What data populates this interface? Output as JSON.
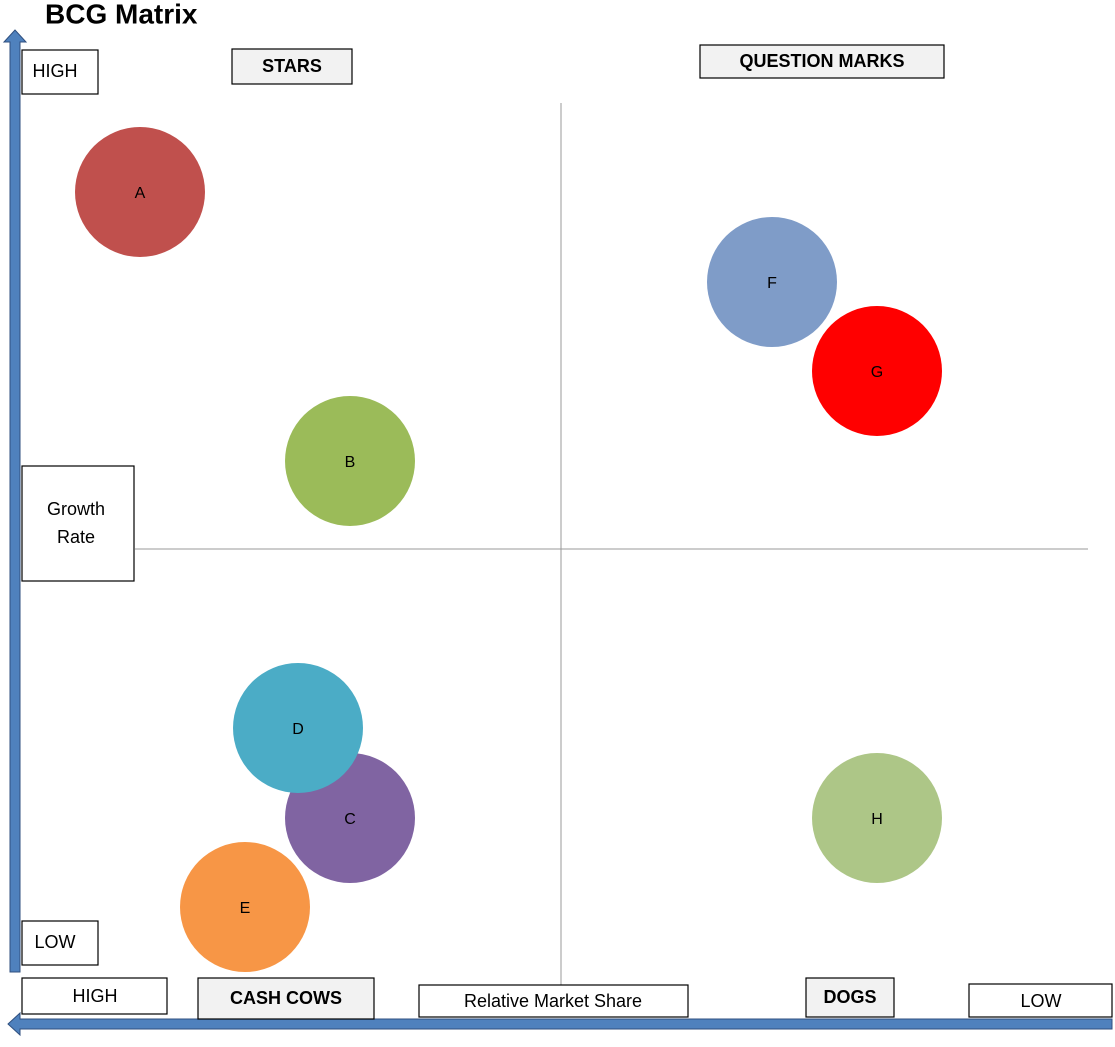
{
  "title": "BCG Matrix",
  "y_axis": {
    "title": "Growth Rate",
    "high": "HIGH",
    "low": "LOW"
  },
  "x_axis": {
    "title": "Relative Market Share",
    "high": "HIGH",
    "low": "LOW"
  },
  "quadrants": {
    "top_left": "STARS",
    "top_right": "QUESTION MARKS",
    "bottom_left": "CASH COWS",
    "bottom_right": "DOGS"
  },
  "nodes": [
    {
      "label": "A",
      "color": "#c0504d"
    },
    {
      "label": "B",
      "color": "#9bbb59"
    },
    {
      "label": "C",
      "color": "#8064a2"
    },
    {
      "label": "D",
      "color": "#4bacc6"
    },
    {
      "label": "E",
      "color": "#f79646"
    },
    {
      "label": "F",
      "color": "#7f9cc8"
    },
    {
      "label": "G",
      "color": "#ff0000"
    },
    {
      "label": "H",
      "color": "#adc687"
    }
  ]
}
